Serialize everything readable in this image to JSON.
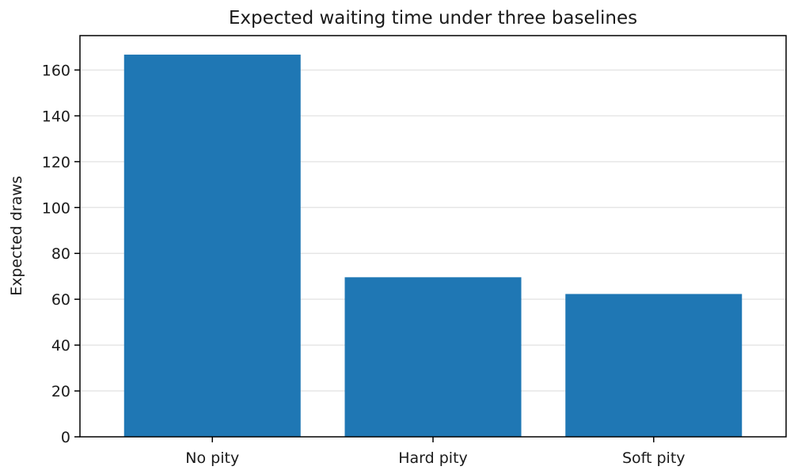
{
  "chart_data": {
    "type": "bar",
    "title": "Expected waiting time under three baselines",
    "xlabel": "",
    "ylabel": "Expected draws",
    "categories": [
      "No pity",
      "Hard pity",
      "Soft pity"
    ],
    "values": [
      166.7,
      69.6,
      62.3
    ],
    "ylim": [
      0,
      175
    ],
    "yticks": [
      0,
      20,
      40,
      60,
      80,
      100,
      120,
      140,
      160
    ],
    "grid": "y",
    "legend": "none",
    "colors": {
      "bar": "#1f77b4",
      "grid": "#e6e6e6",
      "axis": "#000000"
    }
  }
}
